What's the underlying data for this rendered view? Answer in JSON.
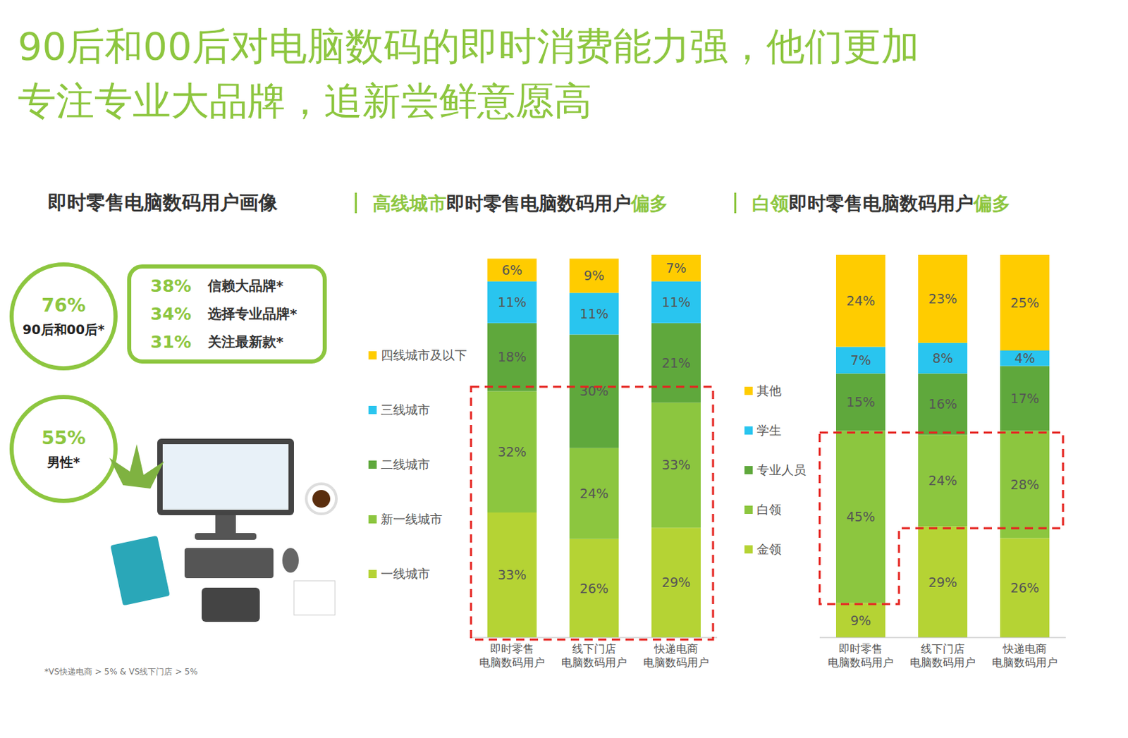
{
  "title": [
    "90后和00后对电脑数码的即时消费能力强，他们更加",
    "专注专业大品牌，追新尝鲜意愿高"
  ],
  "profile": {
    "title": "即时零售电脑数码用户画像",
    "stats": [
      {
        "value": "76%",
        "label": "90后和00后*"
      },
      {
        "value": "55%",
        "label": "男性*"
      }
    ],
    "preferences": [
      {
        "value": "38%",
        "label": "信赖大品牌*"
      },
      {
        "value": "34%",
        "label": "选择专业品牌*"
      },
      {
        "value": "31%",
        "label": "关注最新款*"
      }
    ],
    "note": "*VS快递电商 > 5% & VS线下门店 > 5%"
  },
  "chart_data": [
    {
      "type": "bar",
      "stacked": true,
      "data_labels": true,
      "tick_labels": "x",
      "legend": "left",
      "title": [
        "高线城市",
        "即时零售电脑数码用户",
        "偏多"
      ],
      "categories": [
        "即时零售电脑数码用户",
        "线下门店电脑数码用户",
        "快递电商电脑数码用户"
      ],
      "ylim": [
        0,
        101
      ],
      "series": [
        {
          "name": "一线城市",
          "color": "#b5d334",
          "values": [
            33,
            26,
            29
          ],
          "value_labels": [
            "33%",
            "26%",
            "29%"
          ]
        },
        {
          "name": "新一线城市",
          "color": "#8cc63f",
          "values": [
            32,
            24,
            33
          ],
          "value_labels": [
            "32%",
            "24%",
            "33%"
          ]
        },
        {
          "name": "二线城市",
          "color": "#5fa83c",
          "values": [
            18,
            30,
            21
          ],
          "value_labels": [
            "18%",
            "30%",
            "21%"
          ]
        },
        {
          "name": "三线城市",
          "color": "#29c5ef",
          "values": [
            11,
            11,
            11
          ],
          "value_labels": [
            "11%",
            "11%",
            "11%"
          ]
        },
        {
          "name": "四线城市及以下",
          "color": "#ffcc00",
          "values": [
            6,
            9,
            7
          ],
          "value_labels": [
            "6%",
            "9%",
            "7%"
          ]
        }
      ]
    },
    {
      "type": "bar",
      "stacked": true,
      "data_labels": true,
      "tick_labels": "x",
      "legend": "left",
      "title": [
        "白领",
        "即时零售电脑数码用户",
        "偏多"
      ],
      "categories": [
        "即时零售电脑数码用户",
        "线下门店电脑数码用户",
        "快递电商电脑数码用户"
      ],
      "ylim": [
        0,
        100
      ],
      "series": [
        {
          "name": "金领",
          "color": "#b5d334",
          "values": [
            9,
            29,
            26
          ],
          "value_labels": [
            "9%",
            "29%",
            "26%"
          ]
        },
        {
          "name": "白领",
          "color": "#8cc63f",
          "values": [
            45,
            24,
            28
          ],
          "value_labels": [
            "45%",
            "24%",
            "28%"
          ]
        },
        {
          "name": "专业人员",
          "color": "#5fa83c",
          "values": [
            15,
            16,
            17
          ],
          "value_labels": [
            "15%",
            "16%",
            "17%"
          ]
        },
        {
          "name": "学生",
          "color": "#29c5ef",
          "values": [
            7,
            8,
            4
          ],
          "value_labels": [
            "7%",
            "8%",
            "4%"
          ]
        },
        {
          "name": "其他",
          "color": "#ffcc00",
          "values": [
            24,
            23,
            25
          ],
          "value_labels": [
            "24%",
            "23%",
            "25%"
          ]
        }
      ]
    }
  ]
}
